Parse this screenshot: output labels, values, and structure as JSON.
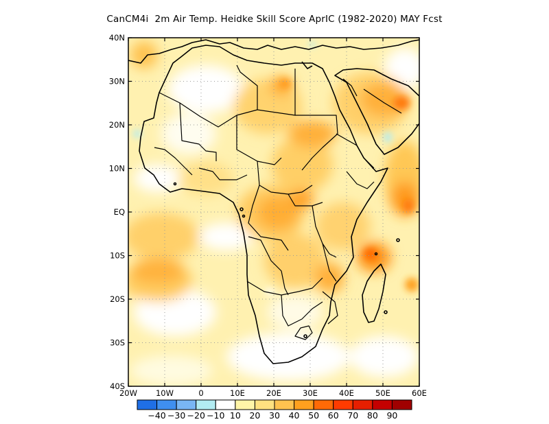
{
  "title": "CanCM4i  2m Air Temp. Heidke Skill Score AprIC (1982-2020) MAY Fcst",
  "map": {
    "lon_range": [
      -20,
      60
    ],
    "lat_range": [
      -40,
      40
    ],
    "grid": true,
    "lon_ticks": [
      {
        "value": -20,
        "label": "20W"
      },
      {
        "value": -10,
        "label": "10W"
      },
      {
        "value": 0,
        "label": "0"
      },
      {
        "value": 10,
        "label": "10E"
      },
      {
        "value": 20,
        "label": "20E"
      },
      {
        "value": 30,
        "label": "30E"
      },
      {
        "value": 40,
        "label": "40E"
      },
      {
        "value": 50,
        "label": "50E"
      },
      {
        "value": 60,
        "label": "60E"
      }
    ],
    "lat_ticks": [
      {
        "value": 40,
        "label": "40N"
      },
      {
        "value": 30,
        "label": "30N"
      },
      {
        "value": 20,
        "label": "20N"
      },
      {
        "value": 10,
        "label": "10N"
      },
      {
        "value": 0,
        "label": "EQ"
      },
      {
        "value": -10,
        "label": "10S"
      },
      {
        "value": -20,
        "label": "20S"
      },
      {
        "value": -30,
        "label": "30S"
      },
      {
        "value": -40,
        "label": "40S"
      }
    ]
  },
  "colorbar": {
    "colors": [
      "#1f6fe6",
      "#3f8ff0",
      "#79b6f4",
      "#b2ecf2",
      "#ffffff",
      "#fff5a8",
      "#ffe180",
      "#ffc24f",
      "#ffa01e",
      "#ff6a06",
      "#ff3b00",
      "#e61f00",
      "#c40000",
      "#a00000"
    ],
    "labels": [
      "-40",
      "-30",
      "-20",
      "-10",
      "10",
      "20",
      "30",
      "40",
      "50",
      "60",
      "70",
      "80",
      "90"
    ]
  },
  "chart_data": {
    "type": "heatmap",
    "title": "CanCM4i  2m Air Temp. Heidke Skill Score AprIC (1982-2020) MAY Fcst",
    "x_range": [
      -20,
      60
    ],
    "y_range": [
      -40,
      40
    ],
    "levels": [
      -40,
      -30,
      -20,
      -10,
      10,
      20,
      30,
      40,
      50,
      60,
      70,
      80,
      90
    ],
    "regions": [
      {
        "lon": 30,
        "lat": 20,
        "level": 40
      },
      {
        "lon": 20,
        "lat": 0,
        "level": 40
      },
      {
        "lon": 48,
        "lat": -12,
        "level": 50
      },
      {
        "lon": 57,
        "lat": 5,
        "level": 50
      },
      {
        "lon": 18,
        "lat": 26,
        "level": 40
      },
      {
        "lon": 53,
        "lat": 28,
        "level": 40
      },
      {
        "lon": -12,
        "lat": -8,
        "level": 30
      },
      {
        "lon": -10,
        "lat": -18,
        "level": 40
      },
      {
        "lon": 12,
        "lat": 28,
        "level": 10
      },
      {
        "lon": 5,
        "lat": -28,
        "level": 10
      },
      {
        "lon": 22,
        "lat": 8,
        "level": 30
      }
    ]
  }
}
